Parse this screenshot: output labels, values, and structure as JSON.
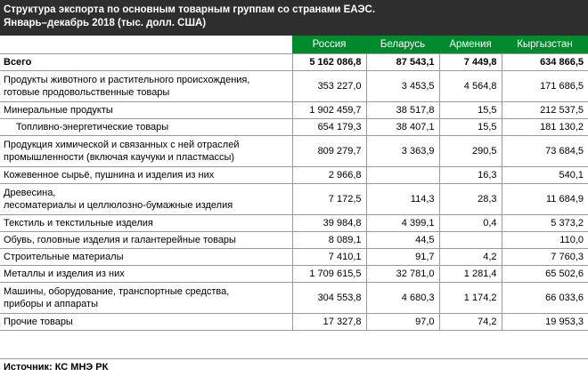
{
  "title": {
    "line1": "Структура экспорта по основным товарным группам со странами ЕАЭС.",
    "line2": "Январь–декабрь 2018 (тыс. долл. США)"
  },
  "columns": [
    "Россия",
    "Беларусь",
    "Армения",
    "Кыргызстан"
  ],
  "rows": [
    {
      "label": "Всего",
      "values": [
        "5 162 086,8",
        "87 543,1",
        "7 449,8",
        "634 866,5"
      ]
    },
    {
      "label": "Продукты животного и растительного происхождения,\nготовые продовольственные товары",
      "values": [
        "353 227,0",
        "3 453,5",
        "4 564,8",
        "171 686,5"
      ]
    },
    {
      "label": "Минеральные продукты",
      "values": [
        "1 902 459,7",
        "38 517,8",
        "15,5",
        "212 537,5"
      ]
    },
    {
      "label": "Топливно-энергетические товары",
      "values": [
        "654 179,3",
        "38 407,1",
        "15,5",
        "181 130,2"
      ]
    },
    {
      "label": "Продукция химической и связанных с ней отраслей\nпромышленности (включая каучуки и пластмассы)",
      "values": [
        "809 279,7",
        "3 363,9",
        "290,5",
        "73 684,5"
      ]
    },
    {
      "label": "Кожевенное сырьё, пушнина и изделия из них",
      "values": [
        "2 966,8",
        "",
        "16,3",
        "540,1"
      ]
    },
    {
      "label": "Древесина,\nлесоматериалы и целлюлозно-бумажные изделия",
      "values": [
        "7 172,5",
        "114,3",
        "28,3",
        "11 684,9"
      ]
    },
    {
      "label": "Текстиль и текстильные изделия",
      "values": [
        "39 984,8",
        "4 399,1",
        "0,4",
        "5 373,2"
      ]
    },
    {
      "label": "Обувь, головные изделия и галантерейные товары",
      "values": [
        "8 089,1",
        "44,5",
        "",
        "110,0"
      ]
    },
    {
      "label": "Строительные материалы",
      "values": [
        "7 410,1",
        "91,7",
        "4,2",
        "7 760,3"
      ]
    },
    {
      "label": "Металлы и изделия из них",
      "values": [
        "1 709 615,5",
        "32 781,0",
        "1 281,4",
        "65 502,6"
      ]
    },
    {
      "label": "Машины, оборудование, транспортные средства,\nприборы и аппараты",
      "values": [
        "304 553,8",
        "4 680,3",
        "1 174,2",
        "66 033,6"
      ]
    },
    {
      "label": "Прочие товары",
      "values": [
        "17 327,8",
        "97,0",
        "74,2",
        "19 953,3"
      ]
    }
  ],
  "source": "Источник: КС МНЭ РК"
}
